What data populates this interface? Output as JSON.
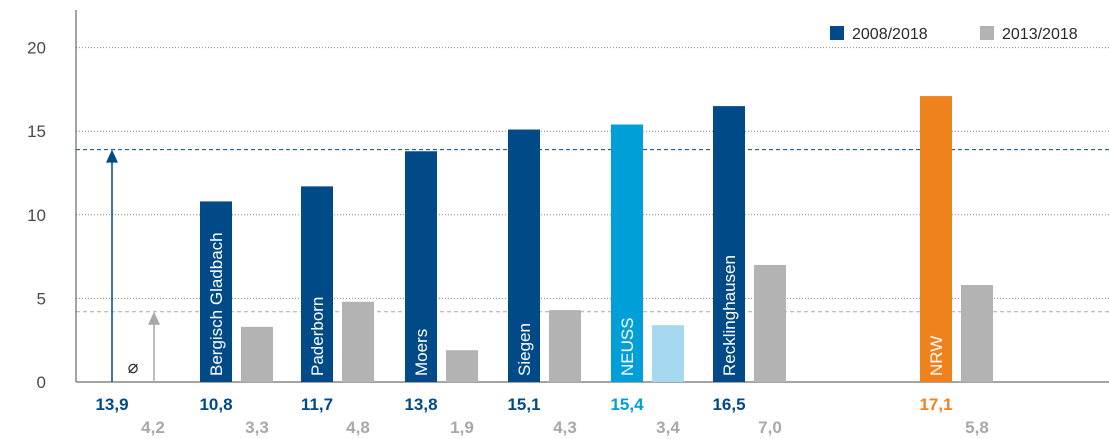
{
  "chart_data": {
    "type": "bar",
    "ylim": [
      0,
      20
    ],
    "yticks": [
      "0",
      "5",
      "10",
      "15",
      "20"
    ],
    "grid": "dotted horizontal",
    "legend_position": "top-right",
    "series": [
      {
        "name": "2008/2018",
        "color": "#004a87"
      },
      {
        "name": "2013/2018",
        "color": "#b3b3b3"
      }
    ],
    "average": {
      "symbol": "⌀",
      "primary_value": 13.9,
      "primary_label": "13,9",
      "secondary_value": 4.2,
      "secondary_label": "4,2"
    },
    "groups": [
      {
        "name": "Bergisch Gladbach",
        "primary": 10.8,
        "primary_label": "10,8",
        "secondary": 3.3,
        "secondary_label": "3,3",
        "primary_color": "#004a87",
        "secondary_color": "#b3b3b3",
        "label_color": "#004a87",
        "secondary_label_color": "#a8a8a8"
      },
      {
        "name": "Paderborn",
        "primary": 11.7,
        "primary_label": "11,7",
        "secondary": 4.8,
        "secondary_label": "4,8",
        "primary_color": "#004a87",
        "secondary_color": "#b3b3b3",
        "label_color": "#004a87",
        "secondary_label_color": "#a8a8a8"
      },
      {
        "name": "Moers",
        "primary": 13.8,
        "primary_label": "13,8",
        "secondary": 1.9,
        "secondary_label": "1,9",
        "primary_color": "#004a87",
        "secondary_color": "#b3b3b3",
        "label_color": "#004a87",
        "secondary_label_color": "#a8a8a8"
      },
      {
        "name": "Siegen",
        "primary": 15.1,
        "primary_label": "15,1",
        "secondary": 4.3,
        "secondary_label": "4,3",
        "primary_color": "#004a87",
        "secondary_color": "#b3b3b3",
        "label_color": "#004a87",
        "secondary_label_color": "#a8a8a8"
      },
      {
        "name": "NEUSS",
        "primary": 15.4,
        "primary_label": "15,4",
        "secondary": 3.4,
        "secondary_label": "3,4",
        "primary_color": "#009fd8",
        "secondary_color": "#a6d8f0",
        "label_color": "#009fd8",
        "secondary_label_color": "#4bb8e6"
      },
      {
        "name": "Recklinghausen",
        "primary": 16.5,
        "primary_label": "16,5",
        "secondary": 7.0,
        "secondary_label": "7,0",
        "primary_color": "#004a87",
        "secondary_color": "#b3b3b3",
        "label_color": "#004a87",
        "secondary_label_color": "#a8a8a8"
      },
      {
        "name": "NRW",
        "primary": 17.1,
        "primary_label": "17,1",
        "secondary": 5.8,
        "secondary_label": "5,8",
        "primary_color": "#f0821e",
        "secondary_color": "#b3b3b3",
        "label_color": "#f0821e",
        "secondary_label_color": "#a8a8a8"
      }
    ]
  }
}
